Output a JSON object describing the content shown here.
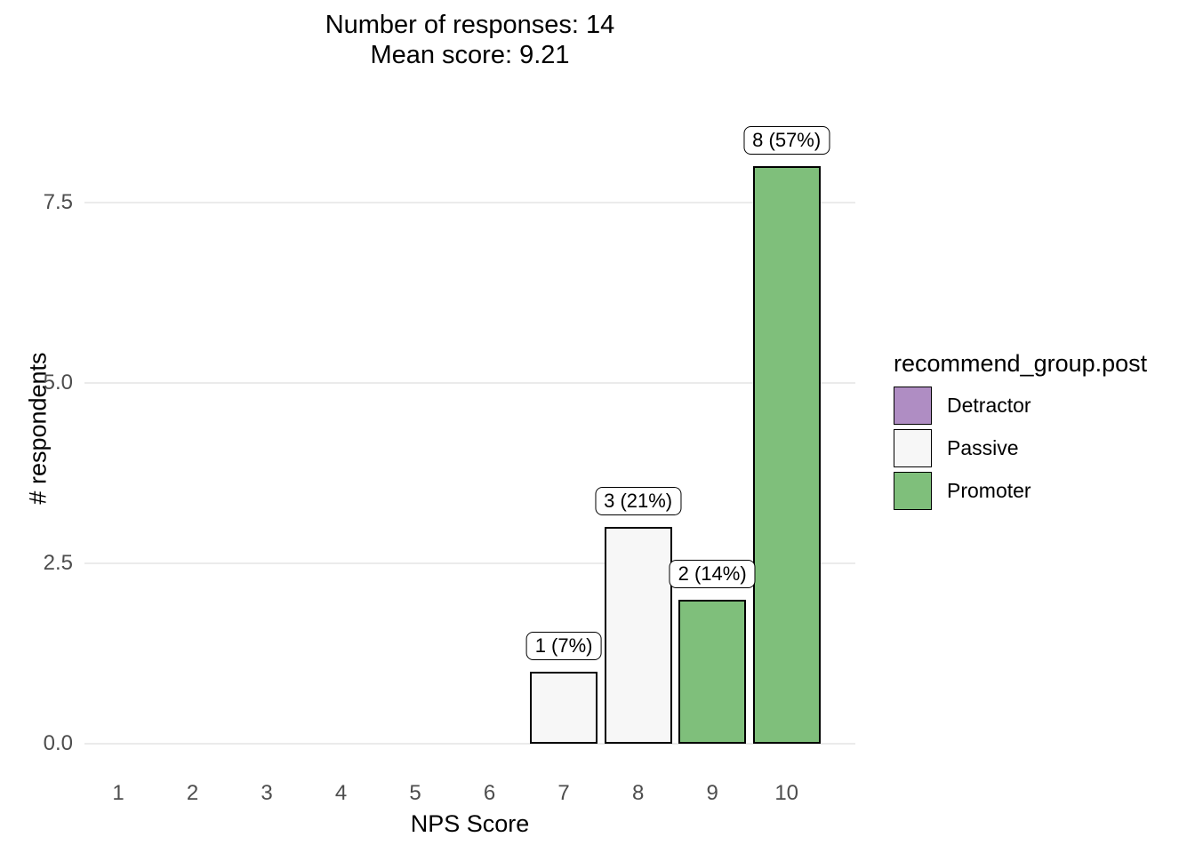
{
  "title": {
    "line1": "Number of responses: 14",
    "line2": "Mean score: 9.21"
  },
  "chart_data": {
    "type": "bar",
    "x": [
      7,
      8,
      9,
      10
    ],
    "values": [
      1,
      3,
      2,
      8
    ],
    "bar_labels": [
      "1 (7%)",
      "3 (21%)",
      "2 (14%)",
      "8 (57%)"
    ],
    "bar_groups": [
      "Passive",
      "Passive",
      "Promoter",
      "Promoter"
    ],
    "x_ticks": [
      "1",
      "2",
      "3",
      "4",
      "5",
      "6",
      "7",
      "8",
      "9",
      "10"
    ],
    "y_ticks": [
      "0.0",
      "2.5",
      "5.0",
      "7.5"
    ],
    "xlabel": "NPS Score",
    "ylabel": "# respondents",
    "xlim": [
      0.55,
      10.45
    ],
    "ylim": [
      0,
      8.8
    ],
    "grid": "horizontal",
    "legend": {
      "title": "recommend_group.post",
      "position": "right",
      "entries": [
        {
          "label": "Detractor",
          "color": "#af8dc3"
        },
        {
          "label": "Passive",
          "color": "#f7f7f7"
        },
        {
          "label": "Promoter",
          "color": "#7fbf7b"
        }
      ]
    }
  },
  "colors": {
    "background": "#ffffff",
    "gridline": "#ebebeb",
    "axis_text": "#4d4d4d",
    "bar_border": "#000000",
    "label_box_bg": "#ffffff"
  }
}
